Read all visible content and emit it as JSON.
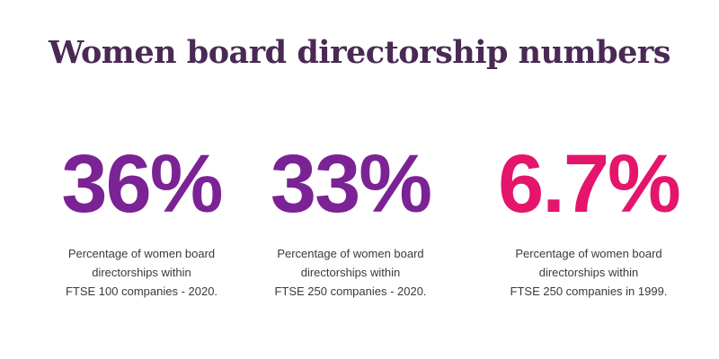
{
  "title": "Women board directorship numbers",
  "colors": {
    "title": "#4a2a55",
    "purple": "#7b2295",
    "pink": "#e4156b",
    "text": "#3a3a3a"
  },
  "stats": [
    {
      "value": "36%",
      "color": "#7b2295",
      "lines": [
        "Percentage of women board",
        "directorships within",
        "FTSE 100 companies - 2020."
      ]
    },
    {
      "value": "33%",
      "color": "#7b2295",
      "lines": [
        "Percentage of women board",
        "directorships within",
        "FTSE 250 companies - 2020."
      ]
    },
    {
      "value": "6.7%",
      "color": "#e4156b",
      "lines": [
        "Percentage of women board",
        "directorships within",
        "FTSE 250 companies in 1999."
      ]
    }
  ]
}
